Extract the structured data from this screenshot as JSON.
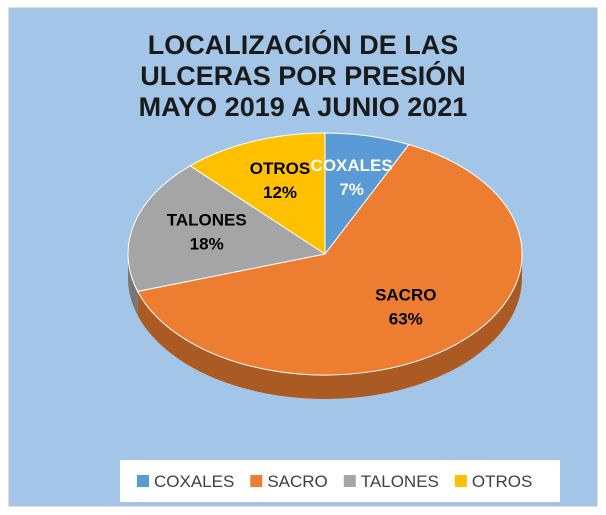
{
  "chart_data": {
    "type": "pie3d",
    "title": "LOCALIZACIÓN DE LAS ULCERAS POR PRESIÓN  MAYO 2019 A JUNIO 2021",
    "categories": [
      "COXALES",
      "SACRO",
      "TALONES",
      "OTROS"
    ],
    "values": [
      7,
      63,
      18,
      12
    ],
    "value_labels": [
      "7%",
      "63%",
      "18%",
      "12%"
    ],
    "colors": [
      "#5b9bd5",
      "#ed7d31",
      "#a5a5a5",
      "#ffc000"
    ],
    "label_colors": [
      "#ffffff",
      "#000000",
      "#000000",
      "#000000"
    ],
    "legend": "bottom"
  }
}
